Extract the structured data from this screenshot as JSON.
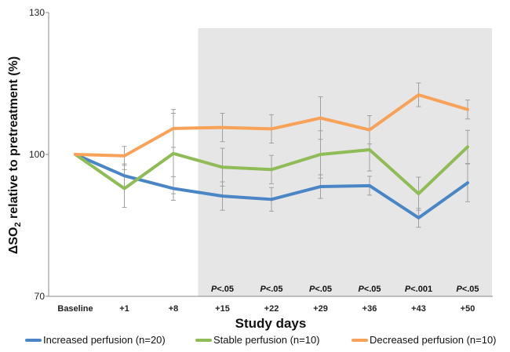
{
  "chart_data": {
    "type": "line",
    "xlabel": "Study days",
    "ylabel_prefix": "ΔSO",
    "ylabel_sub": "2",
    "ylabel_suffix": " relative to pretreatment (%)",
    "ylim": [
      70,
      130
    ],
    "yticks": [
      "70",
      "100",
      "130"
    ],
    "categories": [
      "Baseline",
      "+1",
      "+8",
      "+15",
      "+22",
      "+29",
      "+36",
      "+43",
      "+50"
    ],
    "shaded_region": {
      "from": "+15",
      "to": "+50",
      "color": "#e6e6e6"
    },
    "pvalues": [
      {
        "x": "+15",
        "p": "<.05"
      },
      {
        "x": "+22",
        "p": "<.05"
      },
      {
        "x": "+29",
        "p": "<.05"
      },
      {
        "x": "+36",
        "p": "<.05"
      },
      {
        "x": "+43",
        "p": "<.001"
      },
      {
        "x": "+50",
        "p": "<.05"
      }
    ],
    "series": [
      {
        "name": "Increased perfusion (n=20)",
        "color": "#4a86c5",
        "values": [
          100,
          95.5,
          92.8,
          91.2,
          90.5,
          93.2,
          93.4,
          86.6,
          94.0
        ],
        "errors": [
          0,
          2.5,
          2.5,
          3.0,
          2.5,
          2.5,
          2.0,
          2.0,
          4.0
        ]
      },
      {
        "name": "Stable perfusion (n=10)",
        "color": "#8fbc57",
        "values": [
          100,
          92.8,
          100.2,
          97.3,
          96.8,
          100.0,
          101.0,
          91.7,
          101.6
        ],
        "errors": [
          0,
          4.0,
          8.5,
          4.0,
          3.0,
          5.0,
          4.5,
          3.5,
          3.5
        ]
      },
      {
        "name": "Decreased perfusion (n=10)",
        "color": "#f7a258",
        "values": [
          100,
          99.7,
          105.5,
          105.7,
          105.4,
          107.7,
          105.2,
          112.6,
          109.5
        ],
        "errors": [
          0,
          2.0,
          4.0,
          3.0,
          3.0,
          4.5,
          3.0,
          2.5,
          2.0
        ]
      }
    ]
  }
}
